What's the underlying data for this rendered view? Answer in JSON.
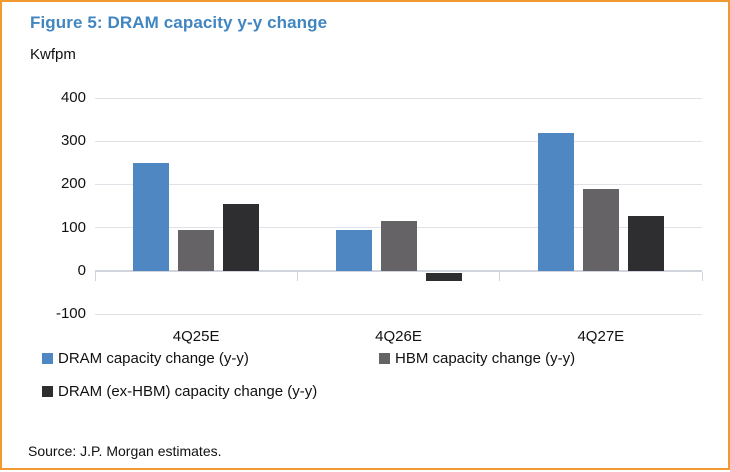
{
  "figure": {
    "title": "Figure 5: DRAM capacity y-y change",
    "unit_label": "Kwfpm",
    "source": "Source: J.P. Morgan estimates."
  },
  "chart_data": {
    "type": "bar",
    "title": "Figure 5: DRAM capacity y-y change",
    "xlabel": "",
    "ylabel": "Kwfpm",
    "categories": [
      "4Q25E",
      "4Q26E",
      "4Q27E"
    ],
    "series": [
      {
        "name": "DRAM capacity change (y-y)",
        "color": "#4E87C2",
        "values": [
          250,
          95,
          318
        ]
      },
      {
        "name": "HBM capacity change (y-y)",
        "color": "#666366",
        "values": [
          95,
          115,
          190
        ]
      },
      {
        "name": "DRAM (ex-HBM) capacity change (y-y)",
        "color": "#2E2D2F",
        "values": [
          155,
          -20,
          128
        ]
      }
    ],
    "ylim": [
      -100,
      400
    ],
    "yticks": [
      400,
      300,
      200,
      100,
      0,
      -100
    ],
    "grid": true,
    "legend_position": "bottom"
  },
  "colors": {
    "border_orange": "#F09A30",
    "title_blue": "#4186C0",
    "gridline": "#E1E2E7",
    "axis_line": "#D2D4DD"
  }
}
